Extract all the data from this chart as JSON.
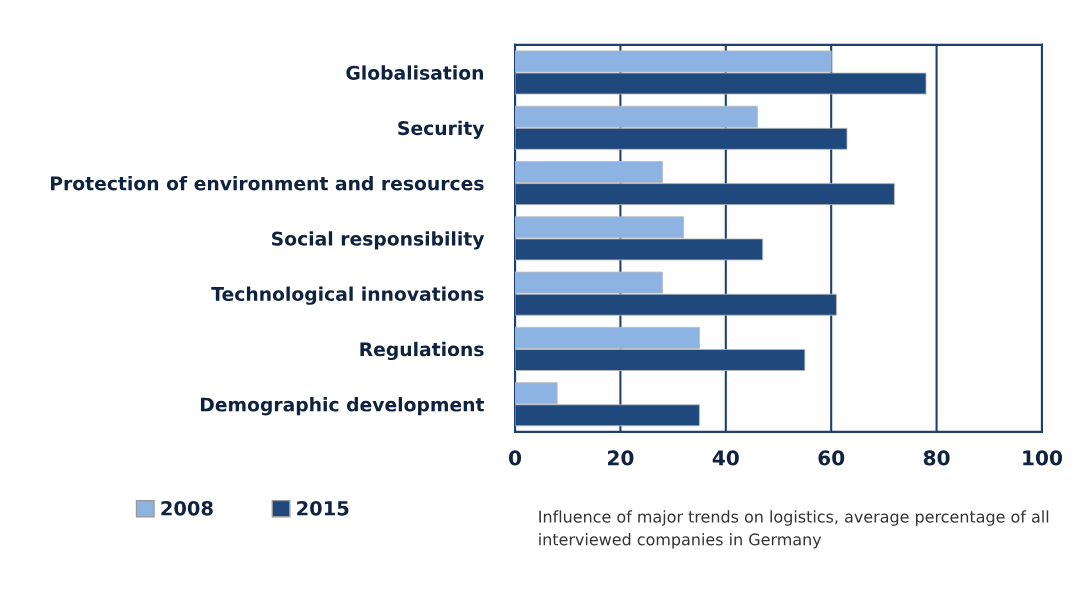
{
  "chart_data": {
    "type": "bar",
    "orientation": "horizontal",
    "categories": [
      "Globalisation",
      "Security",
      "Protection of environment and resources",
      "Social responsibility",
      "Technological innovations",
      "Regulations",
      "Demographic development"
    ],
    "series": [
      {
        "name": "2008",
        "color": "#8db3e2",
        "values": [
          60,
          46,
          28,
          32,
          28,
          35,
          8
        ]
      },
      {
        "name": "2015",
        "color": "#1f497d",
        "values": [
          78,
          63,
          72,
          47,
          61,
          55,
          35
        ]
      }
    ],
    "xlim": [
      0,
      100
    ],
    "xticks": [
      0,
      20,
      40,
      60,
      80,
      100
    ],
    "grid": "x",
    "legend": "bottom left",
    "annotations": [
      "Influence of major trends on logistics, average percentage of all interviewed companies in Germany"
    ]
  }
}
